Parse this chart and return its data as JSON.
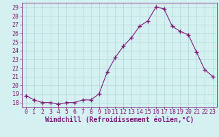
{
  "x": [
    0,
    1,
    2,
    3,
    4,
    5,
    6,
    7,
    8,
    9,
    10,
    11,
    12,
    13,
    14,
    15,
    16,
    17,
    18,
    19,
    20,
    21,
    22,
    23
  ],
  "y": [
    18.8,
    18.3,
    18.0,
    18.0,
    17.8,
    18.0,
    18.0,
    18.3,
    18.3,
    19.0,
    21.5,
    23.2,
    24.5,
    25.5,
    26.8,
    27.4,
    29.0,
    28.8,
    26.8,
    26.2,
    25.8,
    23.8,
    21.8,
    21.0
  ],
  "line_color": "#7B1A7B",
  "marker": "+",
  "marker_size": 4,
  "bg_color": "#d4f0f0",
  "grid_color": "#aed4d4",
  "xlabel": "Windchill (Refroidissement éolien,°C)",
  "xlabel_color": "#7B1A7B",
  "ylim": [
    17.5,
    29.5
  ],
  "yticks": [
    18,
    19,
    20,
    21,
    22,
    23,
    24,
    25,
    26,
    27,
    28,
    29
  ],
  "xticks": [
    0,
    1,
    2,
    3,
    4,
    5,
    6,
    7,
    8,
    9,
    10,
    11,
    12,
    13,
    14,
    15,
    16,
    17,
    18,
    19,
    20,
    21,
    22,
    23
  ],
  "tick_color": "#7B1A7B",
  "spine_color": "#7B1A7B",
  "tick_fontsize": 6,
  "xlabel_fontsize": 7
}
